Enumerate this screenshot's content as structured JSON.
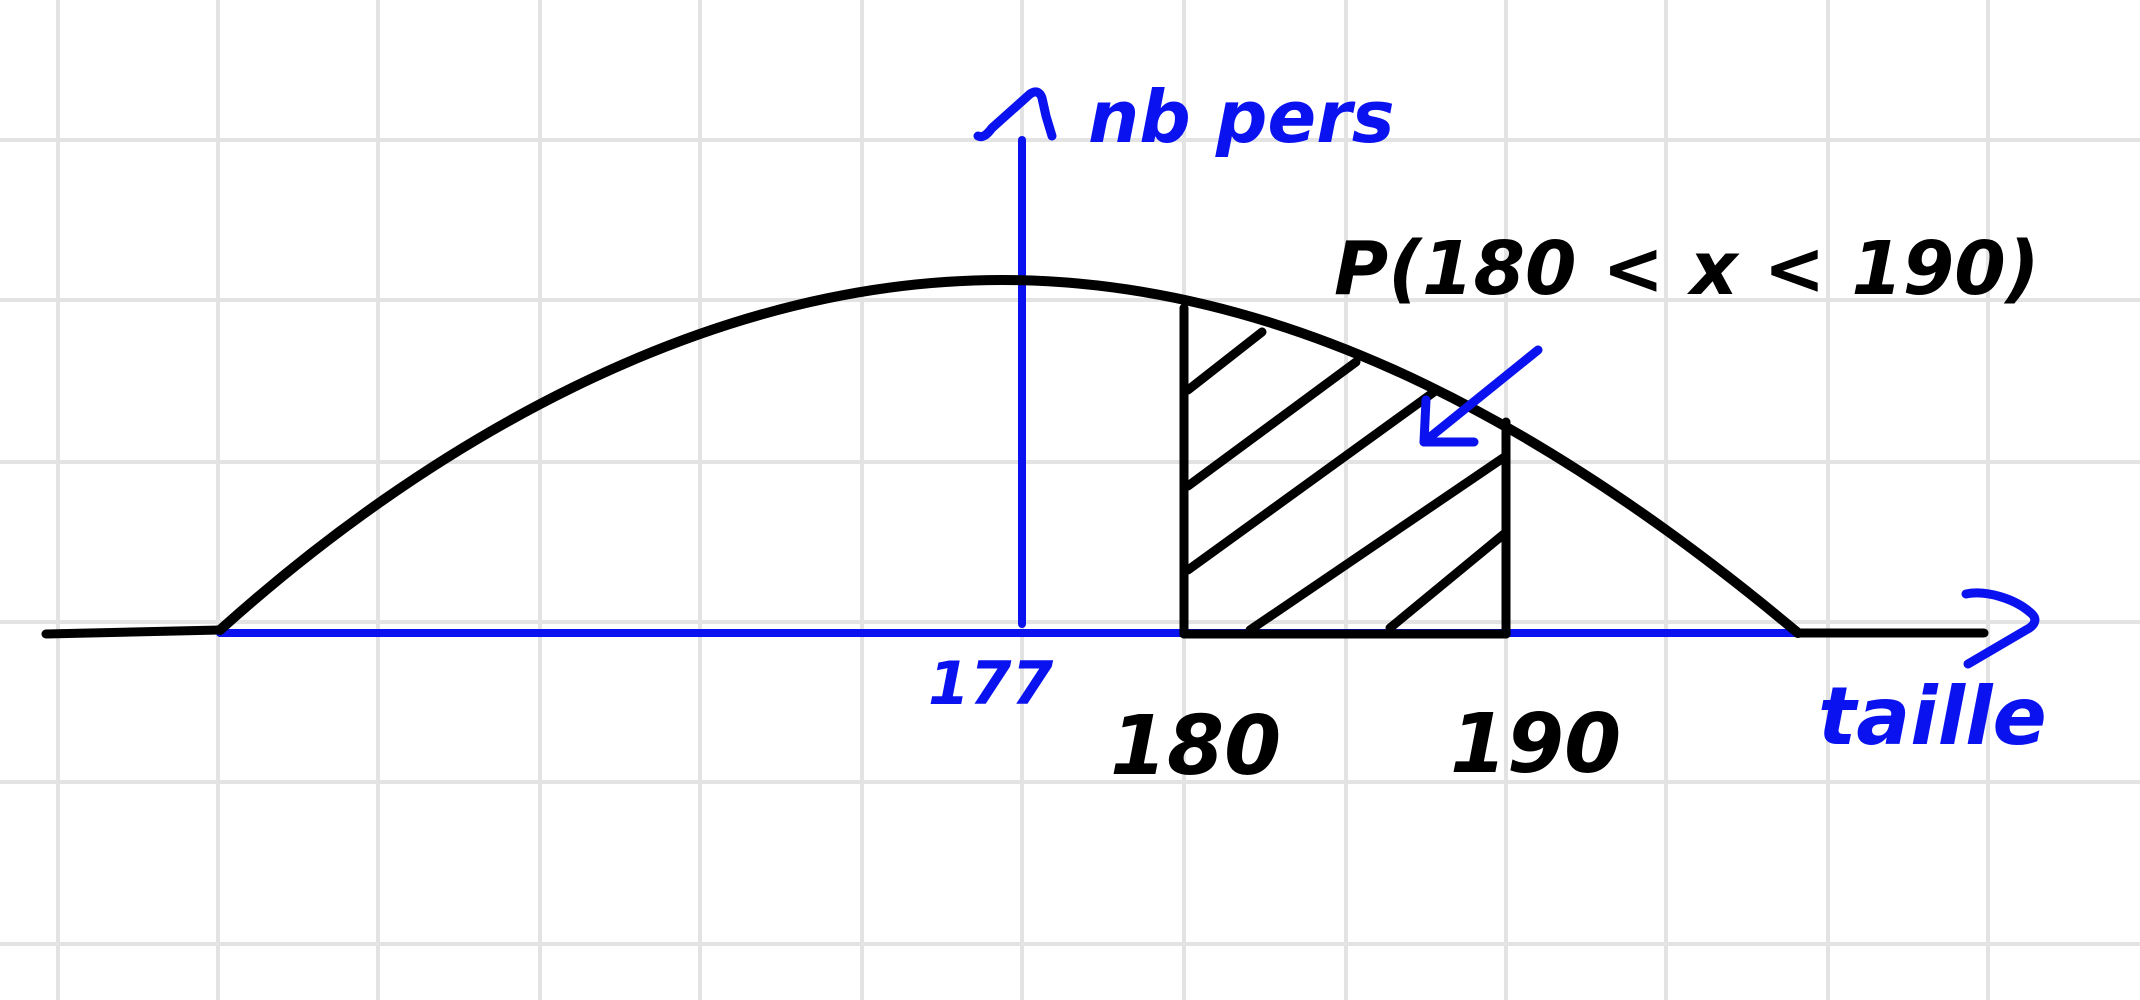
{
  "colors": {
    "grid": "#e3e3e3",
    "black_ink": "#000000",
    "blue_ink": "#0a12f0",
    "background": "#ffffff"
  },
  "annotations": {
    "y_axis_label": "nb pers",
    "x_axis_label": "taille",
    "mean_label": "177",
    "lower_bound_label": "180",
    "upper_bound_label": "190",
    "probability_label": "P(180 < x < 190)"
  }
}
